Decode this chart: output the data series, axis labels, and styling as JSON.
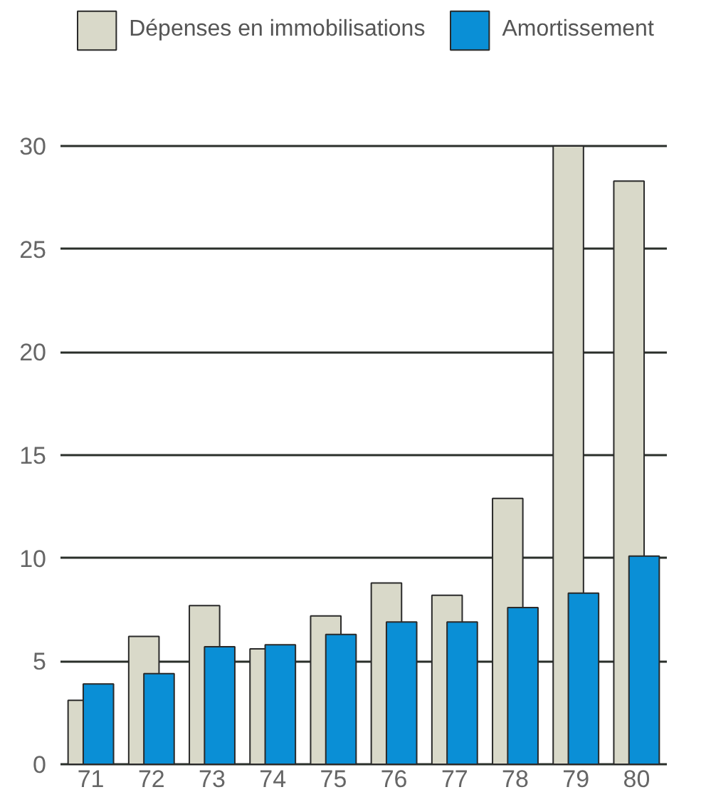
{
  "chart_data": {
    "type": "bar",
    "categories": [
      "71",
      "72",
      "73",
      "74",
      "75",
      "76",
      "77",
      "78",
      "79",
      "80"
    ],
    "series": [
      {
        "name": "Dépenses en immobilisations",
        "color": "#d9d9c9",
        "values": [
          3.1,
          6.2,
          7.7,
          5.6,
          7.2,
          8.8,
          8.2,
          12.9,
          30,
          28.3
        ]
      },
      {
        "name": "Amortissement",
        "color": "#0a8fd6",
        "values": [
          3.9,
          4.4,
          5.7,
          5.8,
          6.3,
          6.9,
          6.9,
          7.6,
          8.3,
          10.1
        ]
      }
    ],
    "ylim": [
      0,
      30
    ],
    "yticks": [
      0,
      5,
      10,
      15,
      20,
      25,
      30
    ],
    "grid": "y",
    "legend": "top"
  }
}
